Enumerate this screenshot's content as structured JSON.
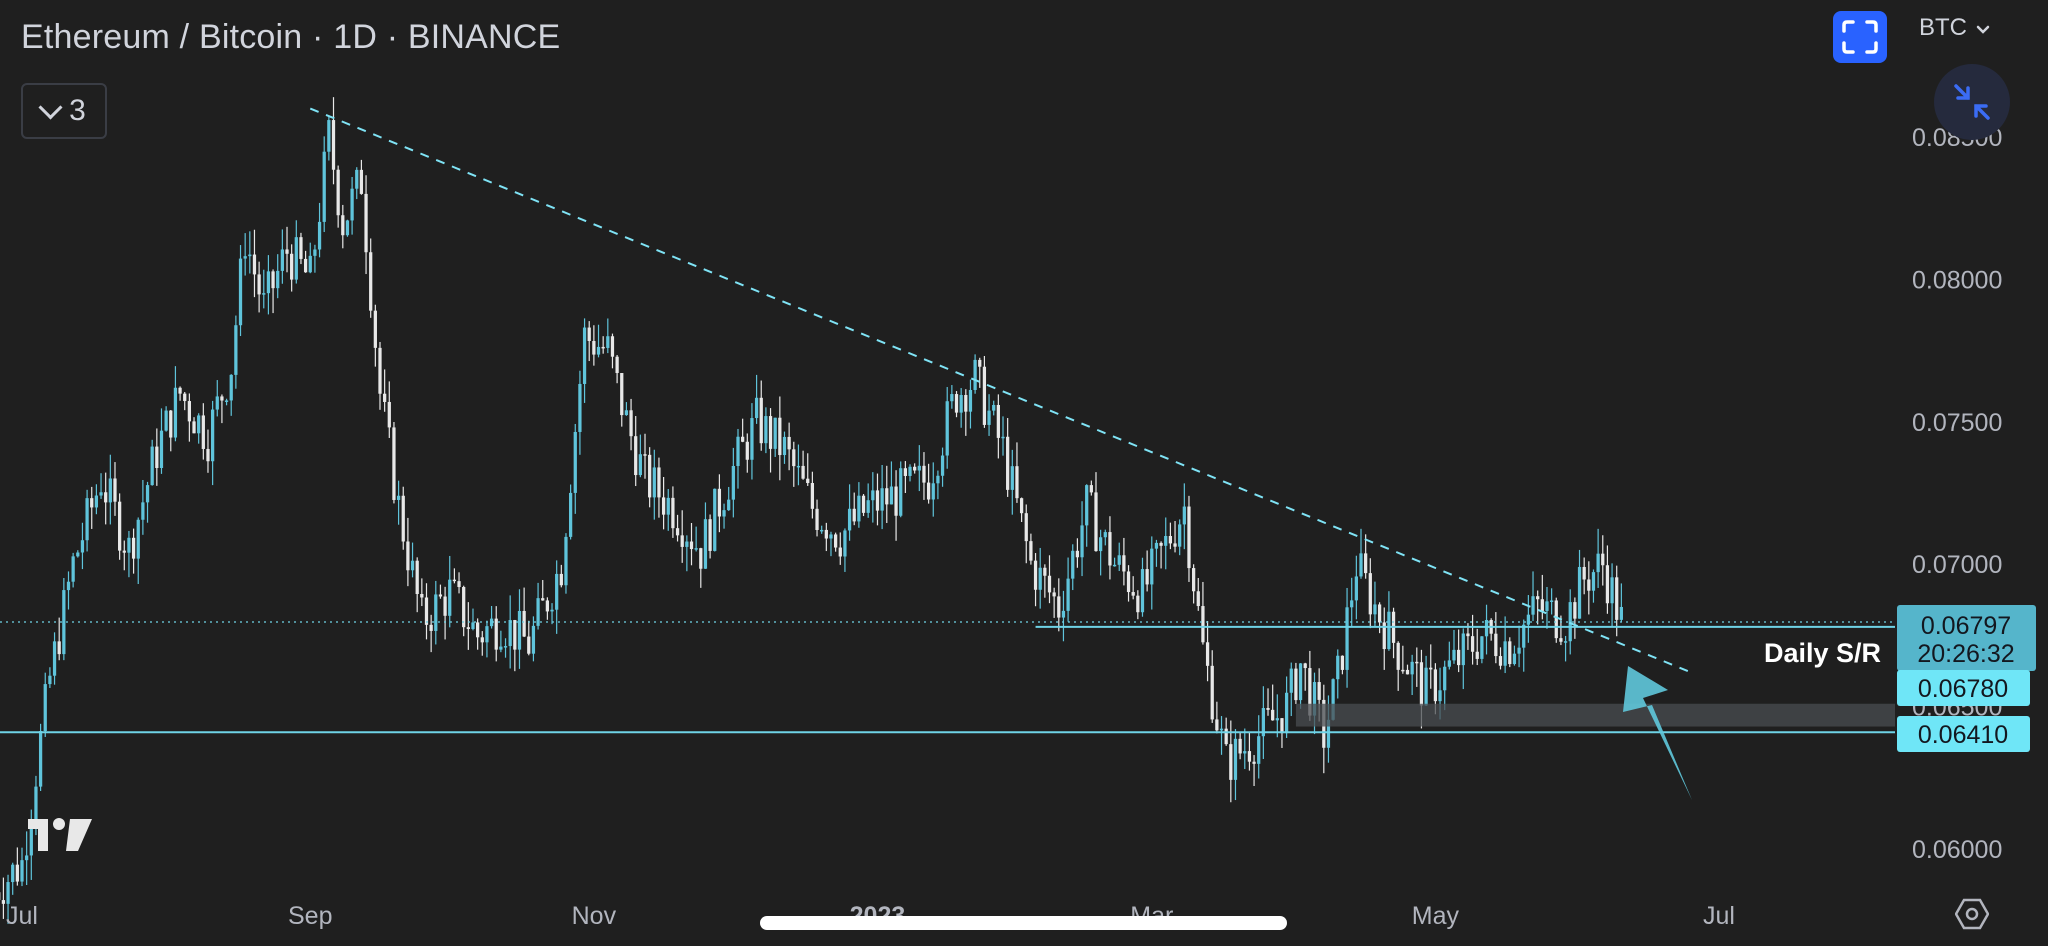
{
  "header": {
    "title": "Ethereum / Bitcoin · 1D · BINANCE",
    "indicator_count": "3",
    "currency": "BTC"
  },
  "chart_data": {
    "type": "candlestick",
    "symbol": "ETH/BTC",
    "interval": "1D",
    "exchange": "BINANCE",
    "y_ticks": [
      "0.08500",
      "0.08000",
      "0.07500",
      "0.07000",
      "0.06500",
      "0.06000"
    ],
    "x_ticks": [
      "Jul",
      "Sep",
      "Nov",
      "2023",
      "Mar",
      "May",
      "Jul"
    ],
    "ylim": [
      0.0588,
      0.0872
    ],
    "price_labels": [
      {
        "value": "0.06797",
        "sub": "20:26:32",
        "kind": "last-price"
      },
      {
        "value": "0.06780",
        "kind": "horizontal-line"
      },
      {
        "value": "0.06410",
        "kind": "horizontal-line"
      }
    ],
    "annotations": [
      {
        "text": "Daily S/R"
      }
    ],
    "trendline": {
      "from": {
        "date": "2022-09-01",
        "price": 0.086
      },
      "to": {
        "date": "2023-06-25",
        "price": 0.0662
      }
    },
    "support_zone": {
      "from": "2023-04-01",
      "lower": 0.0643,
      "upper": 0.0651
    },
    "close_series": [
      [
        "2022-06-25",
        0.0585
      ],
      [
        "2022-07-01",
        0.0595
      ],
      [
        "2022-07-07",
        0.066
      ],
      [
        "2022-07-12",
        0.07
      ],
      [
        "2022-07-18",
        0.073
      ],
      [
        "2022-07-24",
        0.0705
      ],
      [
        "2022-07-30",
        0.074
      ],
      [
        "2022-08-04",
        0.076
      ],
      [
        "2022-08-10",
        0.0745
      ],
      [
        "2022-08-15",
        0.077
      ],
      [
        "2022-08-18",
        0.0815
      ],
      [
        "2022-08-22",
        0.079
      ],
      [
        "2022-08-27",
        0.081
      ],
      [
        "2022-09-01",
        0.08
      ],
      [
        "2022-09-05",
        0.085
      ],
      [
        "2022-09-08",
        0.082
      ],
      [
        "2022-09-12",
        0.0835
      ],
      [
        "2022-09-16",
        0.076
      ],
      [
        "2022-09-20",
        0.072
      ],
      [
        "2022-09-25",
        0.068
      ],
      [
        "2022-10-01",
        0.069
      ],
      [
        "2022-10-07",
        0.0675
      ],
      [
        "2022-10-12",
        0.068
      ],
      [
        "2022-10-18",
        0.0672
      ],
      [
        "2022-10-25",
        0.07
      ],
      [
        "2022-10-30",
        0.078
      ],
      [
        "2022-11-04",
        0.0775
      ],
      [
        "2022-11-08",
        0.075
      ],
      [
        "2022-11-12",
        0.073
      ],
      [
        "2022-11-18",
        0.072
      ],
      [
        "2022-11-24",
        0.0705
      ],
      [
        "2022-11-30",
        0.073
      ],
      [
        "2022-12-06",
        0.075
      ],
      [
        "2022-12-12",
        0.074
      ],
      [
        "2022-12-18",
        0.072
      ],
      [
        "2022-12-24",
        0.071
      ],
      [
        "2022-12-30",
        0.072
      ],
      [
        "2023-01-06",
        0.0725
      ],
      [
        "2023-01-12",
        0.073
      ],
      [
        "2023-01-18",
        0.076
      ],
      [
        "2023-01-22",
        0.0765
      ],
      [
        "2023-01-28",
        0.074
      ],
      [
        "2023-02-03",
        0.07
      ],
      [
        "2023-02-09",
        0.0685
      ],
      [
        "2023-02-15",
        0.072
      ],
      [
        "2023-02-21",
        0.07
      ],
      [
        "2023-02-27",
        0.069
      ],
      [
        "2023-03-05",
        0.071
      ],
      [
        "2023-03-08",
        0.072
      ],
      [
        "2023-03-12",
        0.067
      ],
      [
        "2023-03-17",
        0.063
      ],
      [
        "2023-03-24",
        0.064
      ],
      [
        "2023-03-30",
        0.065
      ],
      [
        "2023-04-02",
        0.0665
      ],
      [
        "2023-04-07",
        0.064
      ],
      [
        "2023-04-10",
        0.066
      ],
      [
        "2023-04-14",
        0.07
      ],
      [
        "2023-04-18",
        0.0685
      ],
      [
        "2023-04-23",
        0.067
      ],
      [
        "2023-04-29",
        0.0655
      ],
      [
        "2023-05-05",
        0.0665
      ],
      [
        "2023-05-11",
        0.0675
      ],
      [
        "2023-05-17",
        0.0672
      ],
      [
        "2023-05-23",
        0.0685
      ],
      [
        "2023-05-29",
        0.068
      ],
      [
        "2023-06-02",
        0.0695
      ],
      [
        "2023-06-06",
        0.07
      ],
      [
        "2023-06-08",
        0.069
      ],
      [
        "2023-06-10",
        0.068
      ]
    ]
  },
  "colors": {
    "background": "#1f1f1f",
    "up": "#5fc4db",
    "down": "#e8e8e8",
    "trendline": "#7fe3f5",
    "level_line": "#6fd3e6",
    "label_bg": "#5fd0ea",
    "arrow": "#5fc8dc",
    "zone": "#4a4d52",
    "axis_text": "#b2b5be"
  },
  "icons": {
    "fullscreen": "fullscreen-icon",
    "shrink": "minimize-arrows-icon",
    "logo": "tradingview-logo",
    "settings": "settings-icon"
  }
}
